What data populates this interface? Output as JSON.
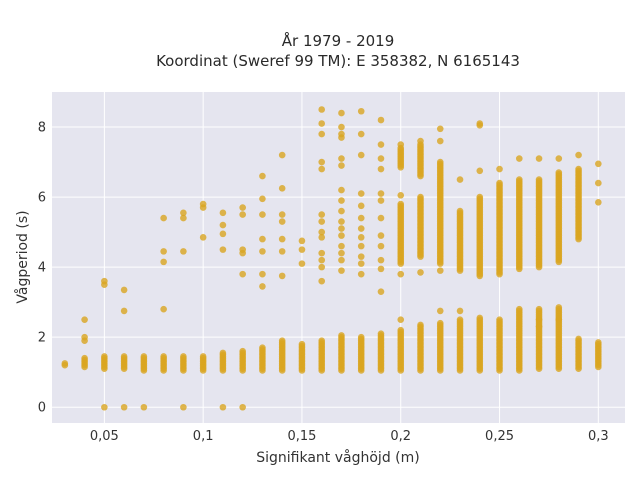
{
  "chart_data": {
    "type": "scatter",
    "title_line1": "År 1979 - 2019",
    "title_line2": "Koordinat (Sweref 99 TM): E 358382, N 6165143",
    "xlabel": "Signifikant våghöjd (m)",
    "ylabel": "Vågperiod (s)",
    "xlim": [
      0.0235,
      0.3135
    ],
    "ylim": [
      -0.45,
      9.0
    ],
    "x_ticks": [
      0.05,
      0.1,
      0.15,
      0.2,
      0.25,
      0.3
    ],
    "x_tick_labels": [
      "0,05",
      "0,1",
      "0,15",
      "0,2",
      "0,25",
      "0,3"
    ],
    "y_ticks": [
      0,
      2,
      4,
      6,
      8
    ],
    "y_tick_labels": [
      "0",
      "2",
      "4",
      "6",
      "8"
    ],
    "grid": true,
    "marker_color": "#DAA520",
    "plot_bg": "#E5E5EF",
    "series": [
      {
        "columns": [
          {
            "x": 0.03,
            "ranges": [
              [
                1.2,
                1.25
              ]
            ],
            "points": []
          },
          {
            "x": 0.04,
            "ranges": [
              [
                1.15,
                1.4
              ]
            ],
            "points": [
              1.9,
              2.0,
              2.5
            ]
          },
          {
            "x": 0.05,
            "ranges": [
              [
                1.1,
                1.45
              ]
            ],
            "points": [
              0,
              3.5,
              3.6
            ]
          },
          {
            "x": 0.06,
            "ranges": [
              [
                1.1,
                1.45
              ]
            ],
            "points": [
              0,
              2.75,
              3.35
            ]
          },
          {
            "x": 0.07,
            "ranges": [
              [
                1.05,
                1.45
              ]
            ],
            "points": [
              0
            ]
          },
          {
            "x": 0.08,
            "ranges": [
              [
                1.05,
                1.45
              ]
            ],
            "points": [
              2.8,
              4.15,
              4.45,
              5.4
            ]
          },
          {
            "x": 0.09,
            "ranges": [
              [
                1.05,
                1.45
              ]
            ],
            "points": [
              0,
              4.45,
              5.4,
              5.55
            ]
          },
          {
            "x": 0.1,
            "ranges": [
              [
                1.05,
                1.45
              ]
            ],
            "points": [
              4.85,
              5.7,
              5.8
            ]
          },
          {
            "x": 0.11,
            "ranges": [
              [
                1.05,
                1.55
              ]
            ],
            "points": [
              0,
              4.5,
              4.95,
              5.2,
              5.55
            ]
          },
          {
            "x": 0.12,
            "ranges": [
              [
                1.05,
                1.6
              ]
            ],
            "points": [
              0,
              3.8,
              4.4,
              4.5,
              5.5,
              5.7
            ]
          },
          {
            "x": 0.13,
            "ranges": [
              [
                1.05,
                1.7
              ]
            ],
            "points": [
              3.45,
              3.8,
              4.45,
              4.8,
              5.5,
              5.95,
              6.6
            ]
          },
          {
            "x": 0.14,
            "ranges": [
              [
                1.05,
                1.9
              ]
            ],
            "points": [
              3.75,
              4.45,
              4.8,
              5.3,
              5.5,
              6.25,
              7.2
            ]
          },
          {
            "x": 0.15,
            "ranges": [
              [
                1.05,
                1.8
              ]
            ],
            "points": [
              4.1,
              4.5,
              4.75
            ]
          },
          {
            "x": 0.16,
            "ranges": [
              [
                1.05,
                1.9
              ]
            ],
            "points": [
              3.6,
              4.0,
              4.2,
              4.4,
              4.85,
              5.0,
              5.3,
              5.5,
              6.8,
              7.0,
              7.8,
              8.1,
              8.5
            ]
          },
          {
            "x": 0.17,
            "ranges": [
              [
                1.05,
                2.05
              ]
            ],
            "points": [
              3.9,
              4.2,
              4.4,
              4.6,
              4.9,
              5.1,
              5.3,
              5.6,
              5.9,
              6.2,
              6.9,
              7.1,
              7.7,
              7.8,
              8.0,
              8.4
            ]
          },
          {
            "x": 0.18,
            "ranges": [
              [
                1.05,
                2.0
              ]
            ],
            "points": [
              3.8,
              4.1,
              4.3,
              4.6,
              4.85,
              5.1,
              5.4,
              5.75,
              6.1,
              7.2,
              7.8,
              8.45
            ]
          },
          {
            "x": 0.19,
            "ranges": [
              [
                1.05,
                2.1
              ]
            ],
            "points": [
              3.3,
              3.95,
              4.2,
              4.6,
              4.9,
              5.4,
              5.9,
              6.1,
              6.8,
              7.1,
              7.5,
              8.2
            ]
          },
          {
            "x": 0.2,
            "ranges": [
              [
                1.05,
                2.2
              ],
              [
                4.1,
                5.8
              ],
              [
                6.9,
                7.4
              ]
            ],
            "points": [
              2.5,
              3.8,
              6.05,
              6.85,
              7.5
            ]
          },
          {
            "x": 0.21,
            "ranges": [
              [
                1.05,
                2.35
              ],
              [
                4.3,
                6.0
              ],
              [
                6.6,
                7.5
              ]
            ],
            "points": [
              3.85,
              7.6
            ]
          },
          {
            "x": 0.22,
            "ranges": [
              [
                1.05,
                2.4
              ],
              [
                4.1,
                7.0
              ]
            ],
            "points": [
              2.75,
              3.9,
              7.6,
              7.95
            ]
          },
          {
            "x": 0.23,
            "ranges": [
              [
                1.05,
                2.5
              ],
              [
                3.9,
                5.6
              ]
            ],
            "points": [
              2.75,
              6.5
            ]
          },
          {
            "x": 0.24,
            "ranges": [
              [
                1.05,
                2.55
              ],
              [
                3.75,
                6.0
              ]
            ],
            "points": [
              6.75,
              8.05,
              8.1
            ]
          },
          {
            "x": 0.25,
            "ranges": [
              [
                1.05,
                2.5
              ],
              [
                3.8,
                6.4
              ]
            ],
            "points": [
              6.8
            ]
          },
          {
            "x": 0.26,
            "ranges": [
              [
                1.05,
                2.8
              ],
              [
                3.95,
                6.5
              ]
            ],
            "points": [
              7.1
            ]
          },
          {
            "x": 0.27,
            "ranges": [
              [
                1.1,
                2.8
              ],
              [
                4.0,
                6.5
              ]
            ],
            "points": [
              2.3,
              2.5,
              7.1
            ]
          },
          {
            "x": 0.28,
            "ranges": [
              [
                1.1,
                2.85
              ],
              [
                4.15,
                6.7
              ]
            ],
            "points": [
              2.5,
              7.1
            ]
          },
          {
            "x": 0.29,
            "ranges": [
              [
                1.1,
                1.95
              ],
              [
                4.8,
                6.8
              ]
            ],
            "points": [
              7.2
            ]
          },
          {
            "x": 0.3,
            "ranges": [
              [
                1.15,
                1.85
              ]
            ],
            "points": [
              5.85,
              6.4,
              6.95
            ]
          }
        ]
      }
    ]
  }
}
